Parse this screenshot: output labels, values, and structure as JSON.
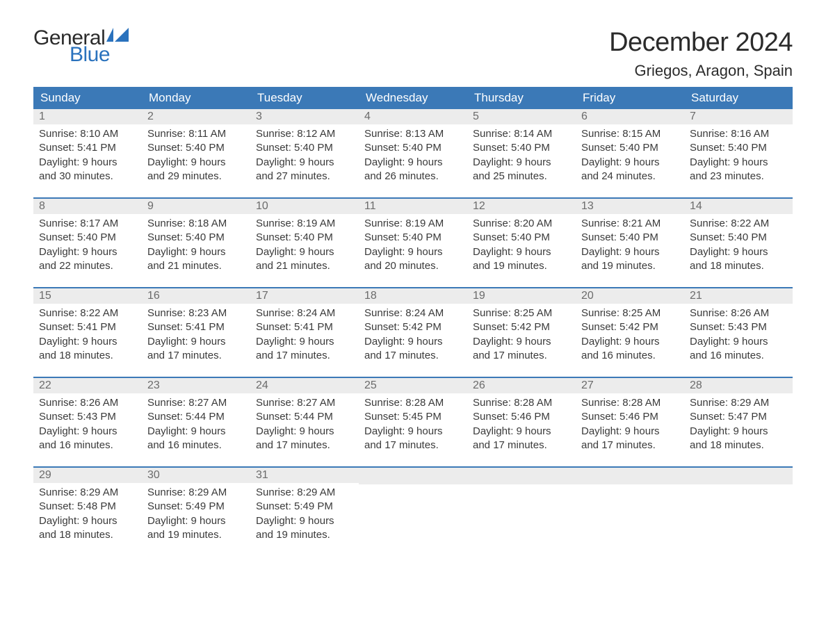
{
  "logo": {
    "text_general": "General",
    "text_blue": "Blue",
    "flag_color": "#2a72bd"
  },
  "header": {
    "month_title": "December 2024",
    "location": "Griegos, Aragon, Spain"
  },
  "colors": {
    "header_bg": "#3b79b7",
    "header_text": "#ffffff",
    "daynum_bg": "#ececec",
    "daynum_text": "#6b6b6b",
    "body_text": "#3a3a3a",
    "week_border": "#3b79b7",
    "accent_blue": "#2a72bd"
  },
  "day_headers": [
    "Sunday",
    "Monday",
    "Tuesday",
    "Wednesday",
    "Thursday",
    "Friday",
    "Saturday"
  ],
  "weeks": [
    [
      {
        "day": "1",
        "sunrise": "Sunrise: 8:10 AM",
        "sunset": "Sunset: 5:41 PM",
        "daylight1": "Daylight: 9 hours",
        "daylight2": "and 30 minutes."
      },
      {
        "day": "2",
        "sunrise": "Sunrise: 8:11 AM",
        "sunset": "Sunset: 5:40 PM",
        "daylight1": "Daylight: 9 hours",
        "daylight2": "and 29 minutes."
      },
      {
        "day": "3",
        "sunrise": "Sunrise: 8:12 AM",
        "sunset": "Sunset: 5:40 PM",
        "daylight1": "Daylight: 9 hours",
        "daylight2": "and 27 minutes."
      },
      {
        "day": "4",
        "sunrise": "Sunrise: 8:13 AM",
        "sunset": "Sunset: 5:40 PM",
        "daylight1": "Daylight: 9 hours",
        "daylight2": "and 26 minutes."
      },
      {
        "day": "5",
        "sunrise": "Sunrise: 8:14 AM",
        "sunset": "Sunset: 5:40 PM",
        "daylight1": "Daylight: 9 hours",
        "daylight2": "and 25 minutes."
      },
      {
        "day": "6",
        "sunrise": "Sunrise: 8:15 AM",
        "sunset": "Sunset: 5:40 PM",
        "daylight1": "Daylight: 9 hours",
        "daylight2": "and 24 minutes."
      },
      {
        "day": "7",
        "sunrise": "Sunrise: 8:16 AM",
        "sunset": "Sunset: 5:40 PM",
        "daylight1": "Daylight: 9 hours",
        "daylight2": "and 23 minutes."
      }
    ],
    [
      {
        "day": "8",
        "sunrise": "Sunrise: 8:17 AM",
        "sunset": "Sunset: 5:40 PM",
        "daylight1": "Daylight: 9 hours",
        "daylight2": "and 22 minutes."
      },
      {
        "day": "9",
        "sunrise": "Sunrise: 8:18 AM",
        "sunset": "Sunset: 5:40 PM",
        "daylight1": "Daylight: 9 hours",
        "daylight2": "and 21 minutes."
      },
      {
        "day": "10",
        "sunrise": "Sunrise: 8:19 AM",
        "sunset": "Sunset: 5:40 PM",
        "daylight1": "Daylight: 9 hours",
        "daylight2": "and 21 minutes."
      },
      {
        "day": "11",
        "sunrise": "Sunrise: 8:19 AM",
        "sunset": "Sunset: 5:40 PM",
        "daylight1": "Daylight: 9 hours",
        "daylight2": "and 20 minutes."
      },
      {
        "day": "12",
        "sunrise": "Sunrise: 8:20 AM",
        "sunset": "Sunset: 5:40 PM",
        "daylight1": "Daylight: 9 hours",
        "daylight2": "and 19 minutes."
      },
      {
        "day": "13",
        "sunrise": "Sunrise: 8:21 AM",
        "sunset": "Sunset: 5:40 PM",
        "daylight1": "Daylight: 9 hours",
        "daylight2": "and 19 minutes."
      },
      {
        "day": "14",
        "sunrise": "Sunrise: 8:22 AM",
        "sunset": "Sunset: 5:40 PM",
        "daylight1": "Daylight: 9 hours",
        "daylight2": "and 18 minutes."
      }
    ],
    [
      {
        "day": "15",
        "sunrise": "Sunrise: 8:22 AM",
        "sunset": "Sunset: 5:41 PM",
        "daylight1": "Daylight: 9 hours",
        "daylight2": "and 18 minutes."
      },
      {
        "day": "16",
        "sunrise": "Sunrise: 8:23 AM",
        "sunset": "Sunset: 5:41 PM",
        "daylight1": "Daylight: 9 hours",
        "daylight2": "and 17 minutes."
      },
      {
        "day": "17",
        "sunrise": "Sunrise: 8:24 AM",
        "sunset": "Sunset: 5:41 PM",
        "daylight1": "Daylight: 9 hours",
        "daylight2": "and 17 minutes."
      },
      {
        "day": "18",
        "sunrise": "Sunrise: 8:24 AM",
        "sunset": "Sunset: 5:42 PM",
        "daylight1": "Daylight: 9 hours",
        "daylight2": "and 17 minutes."
      },
      {
        "day": "19",
        "sunrise": "Sunrise: 8:25 AM",
        "sunset": "Sunset: 5:42 PM",
        "daylight1": "Daylight: 9 hours",
        "daylight2": "and 17 minutes."
      },
      {
        "day": "20",
        "sunrise": "Sunrise: 8:25 AM",
        "sunset": "Sunset: 5:42 PM",
        "daylight1": "Daylight: 9 hours",
        "daylight2": "and 16 minutes."
      },
      {
        "day": "21",
        "sunrise": "Sunrise: 8:26 AM",
        "sunset": "Sunset: 5:43 PM",
        "daylight1": "Daylight: 9 hours",
        "daylight2": "and 16 minutes."
      }
    ],
    [
      {
        "day": "22",
        "sunrise": "Sunrise: 8:26 AM",
        "sunset": "Sunset: 5:43 PM",
        "daylight1": "Daylight: 9 hours",
        "daylight2": "and 16 minutes."
      },
      {
        "day": "23",
        "sunrise": "Sunrise: 8:27 AM",
        "sunset": "Sunset: 5:44 PM",
        "daylight1": "Daylight: 9 hours",
        "daylight2": "and 16 minutes."
      },
      {
        "day": "24",
        "sunrise": "Sunrise: 8:27 AM",
        "sunset": "Sunset: 5:44 PM",
        "daylight1": "Daylight: 9 hours",
        "daylight2": "and 17 minutes."
      },
      {
        "day": "25",
        "sunrise": "Sunrise: 8:28 AM",
        "sunset": "Sunset: 5:45 PM",
        "daylight1": "Daylight: 9 hours",
        "daylight2": "and 17 minutes."
      },
      {
        "day": "26",
        "sunrise": "Sunrise: 8:28 AM",
        "sunset": "Sunset: 5:46 PM",
        "daylight1": "Daylight: 9 hours",
        "daylight2": "and 17 minutes."
      },
      {
        "day": "27",
        "sunrise": "Sunrise: 8:28 AM",
        "sunset": "Sunset: 5:46 PM",
        "daylight1": "Daylight: 9 hours",
        "daylight2": "and 17 minutes."
      },
      {
        "day": "28",
        "sunrise": "Sunrise: 8:29 AM",
        "sunset": "Sunset: 5:47 PM",
        "daylight1": "Daylight: 9 hours",
        "daylight2": "and 18 minutes."
      }
    ],
    [
      {
        "day": "29",
        "sunrise": "Sunrise: 8:29 AM",
        "sunset": "Sunset: 5:48 PM",
        "daylight1": "Daylight: 9 hours",
        "daylight2": "and 18 minutes."
      },
      {
        "day": "30",
        "sunrise": "Sunrise: 8:29 AM",
        "sunset": "Sunset: 5:49 PM",
        "daylight1": "Daylight: 9 hours",
        "daylight2": "and 19 minutes."
      },
      {
        "day": "31",
        "sunrise": "Sunrise: 8:29 AM",
        "sunset": "Sunset: 5:49 PM",
        "daylight1": "Daylight: 9 hours",
        "daylight2": "and 19 minutes."
      },
      null,
      null,
      null,
      null
    ]
  ]
}
